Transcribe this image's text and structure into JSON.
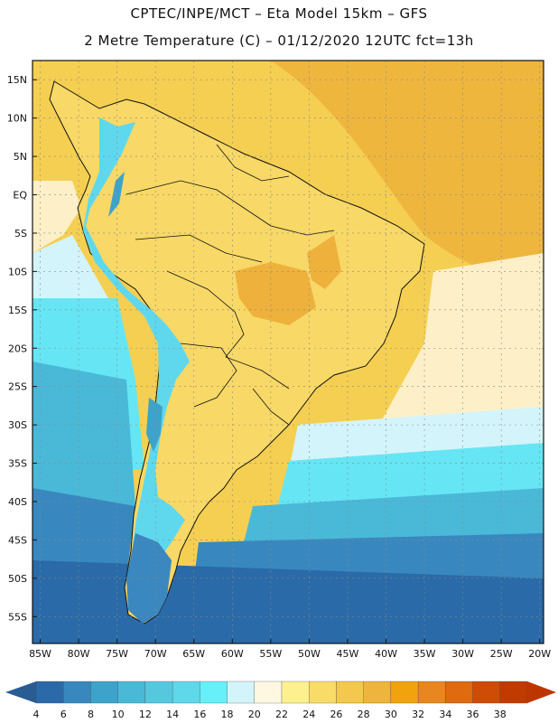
{
  "header": {
    "title_line1": "CPTEC/INPE/MCT –  Eta Model 15km – GFS",
    "title_line2": "2 Metre Temperature (C) – 01/12/2020 12UTC fct=13h"
  },
  "map": {
    "lat_labels": [
      "15N",
      "10N",
      "5N",
      "EQ",
      "5S",
      "10S",
      "15S",
      "20S",
      "25S",
      "30S",
      "35S",
      "40S",
      "45S",
      "50S",
      "55S"
    ],
    "lon_labels": [
      "85W",
      "80W",
      "75W",
      "70W",
      "65W",
      "60W",
      "55W",
      "50W",
      "45W",
      "40W",
      "35W",
      "30W",
      "25W",
      "20W"
    ],
    "colors": {
      "ocean_warm": "#f2c64a",
      "ocean_hot": "#edb23a",
      "land_base": "#f7d45c",
      "land_hot": "#eaa732",
      "andes_cold": "#5fd8ee",
      "south_cold": "#2a78b4",
      "border": "#111111",
      "grid": "#888888"
    }
  },
  "colorbar": {
    "labels": [
      "4",
      "6",
      "8",
      "10",
      "12",
      "14",
      "16",
      "18",
      "20",
      "22",
      "24",
      "26",
      "28",
      "30",
      "32",
      "34",
      "36",
      "38"
    ],
    "colors": [
      "#2b6aa8",
      "#3888bf",
      "#3ea3cb",
      "#4ab9d8",
      "#55c8e0",
      "#5ed8ea",
      "#66f0fa",
      "#d4f4fb",
      "#fef8e2",
      "#fdf08f",
      "#f9dc68",
      "#f4c84c",
      "#eeb43e",
      "#f0a30c",
      "#e88620",
      "#e06a10",
      "#cf4c06",
      "#c13a00"
    ],
    "left_arrow_color": "#2a5c94",
    "right_arrow_color": "#bd3600"
  }
}
